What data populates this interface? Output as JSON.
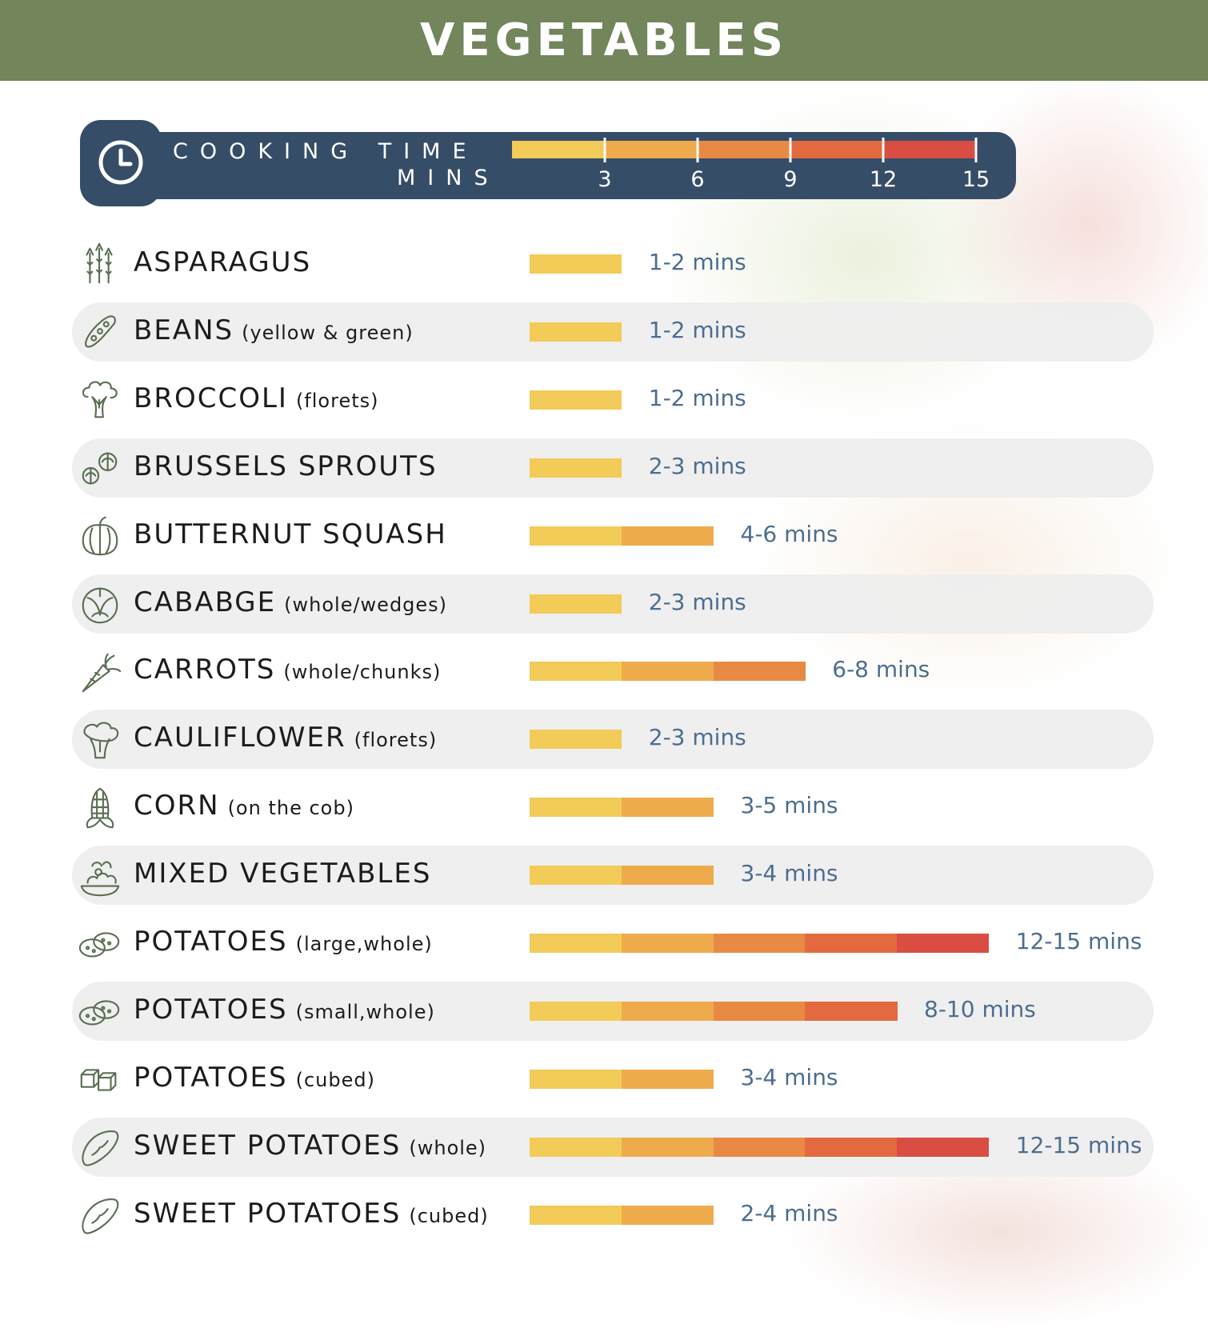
{
  "page": {
    "title": "VEGETABLES",
    "colors": {
      "header": "#72855b",
      "legend_bg": "#364d68",
      "row_alt": "#eeeeee",
      "time_text": "#4c6d90",
      "segments": [
        "#f2cb58",
        "#eeab4b",
        "#e88a44",
        "#e36a3e",
        "#d94d43"
      ]
    }
  },
  "legend": {
    "title": "COOKING TIME",
    "unit": "MINS",
    "icon": "clock-icon"
  },
  "chart_data": {
    "type": "bar",
    "orientation": "horizontal",
    "title": "VEGETABLES",
    "xlabel": "COOKING TIME MINS",
    "xlim": [
      0,
      15
    ],
    "ticks": [
      3,
      6,
      9,
      12,
      15
    ],
    "segment_size": 3,
    "grid": false,
    "categories": [
      {
        "name": "ASPARAGUS",
        "note": "",
        "icon": "asparagus-icon",
        "time_label": "1-2 mins",
        "max_minutes": 3,
        "alt": false
      },
      {
        "name": "BEANS",
        "note": "(yellow & green)",
        "icon": "bean-icon",
        "time_label": "1-2 mins",
        "max_minutes": 3,
        "alt": true
      },
      {
        "name": "BROCCOLI",
        "note": "(florets)",
        "icon": "broccoli-icon",
        "time_label": "1-2 mins",
        "max_minutes": 3,
        "alt": false
      },
      {
        "name": "BRUSSELS SPROUTS",
        "note": "",
        "icon": "brussels-sprouts-icon",
        "time_label": "2-3 mins",
        "max_minutes": 3,
        "alt": true
      },
      {
        "name": "BUTTERNUT SQUASH",
        "note": "",
        "icon": "squash-icon",
        "time_label": "4-6 mins",
        "max_minutes": 6,
        "alt": false
      },
      {
        "name": "CABABGE",
        "note": "(whole/wedges)",
        "icon": "cabbage-icon",
        "time_label": "2-3 mins",
        "max_minutes": 3,
        "alt": true
      },
      {
        "name": "CARROTS",
        "note": "(whole/chunks)",
        "icon": "carrot-icon",
        "time_label": "6-8 mins",
        "max_minutes": 9,
        "alt": false
      },
      {
        "name": "CAULIFLOWER",
        "note": "(florets)",
        "icon": "cauliflower-icon",
        "time_label": "2-3 mins",
        "max_minutes": 3,
        "alt": true
      },
      {
        "name": "CORN",
        "note": "(on the cob)",
        "icon": "corn-icon",
        "time_label": "3-5 mins",
        "max_minutes": 6,
        "alt": false
      },
      {
        "name": "MIXED VEGETABLES",
        "note": "",
        "icon": "mixed-vegetables-icon",
        "time_label": "3-4 mins",
        "max_minutes": 6,
        "alt": true
      },
      {
        "name": "POTATOES",
        "note": "(large,whole)",
        "icon": "potato-icon",
        "time_label": "12-15 mins",
        "max_minutes": 15,
        "alt": false
      },
      {
        "name": "POTATOES",
        "note": "(small,whole)",
        "icon": "potato-icon",
        "time_label": "8-10 mins",
        "max_minutes": 12,
        "alt": true
      },
      {
        "name": "POTATOES",
        "note": "(cubed)",
        "icon": "potato-cubes-icon",
        "time_label": "3-4 mins",
        "max_minutes": 6,
        "alt": false
      },
      {
        "name": "SWEET POTATOES",
        "note": "(whole)",
        "icon": "sweet-potato-icon",
        "time_label": "12-15 mins",
        "max_minutes": 15,
        "alt": true
      },
      {
        "name": "SWEET POTATOES",
        "note": "(cubed)",
        "icon": "sweet-potato-icon",
        "time_label": "2-4 mins",
        "max_minutes": 6,
        "alt": false
      }
    ]
  }
}
